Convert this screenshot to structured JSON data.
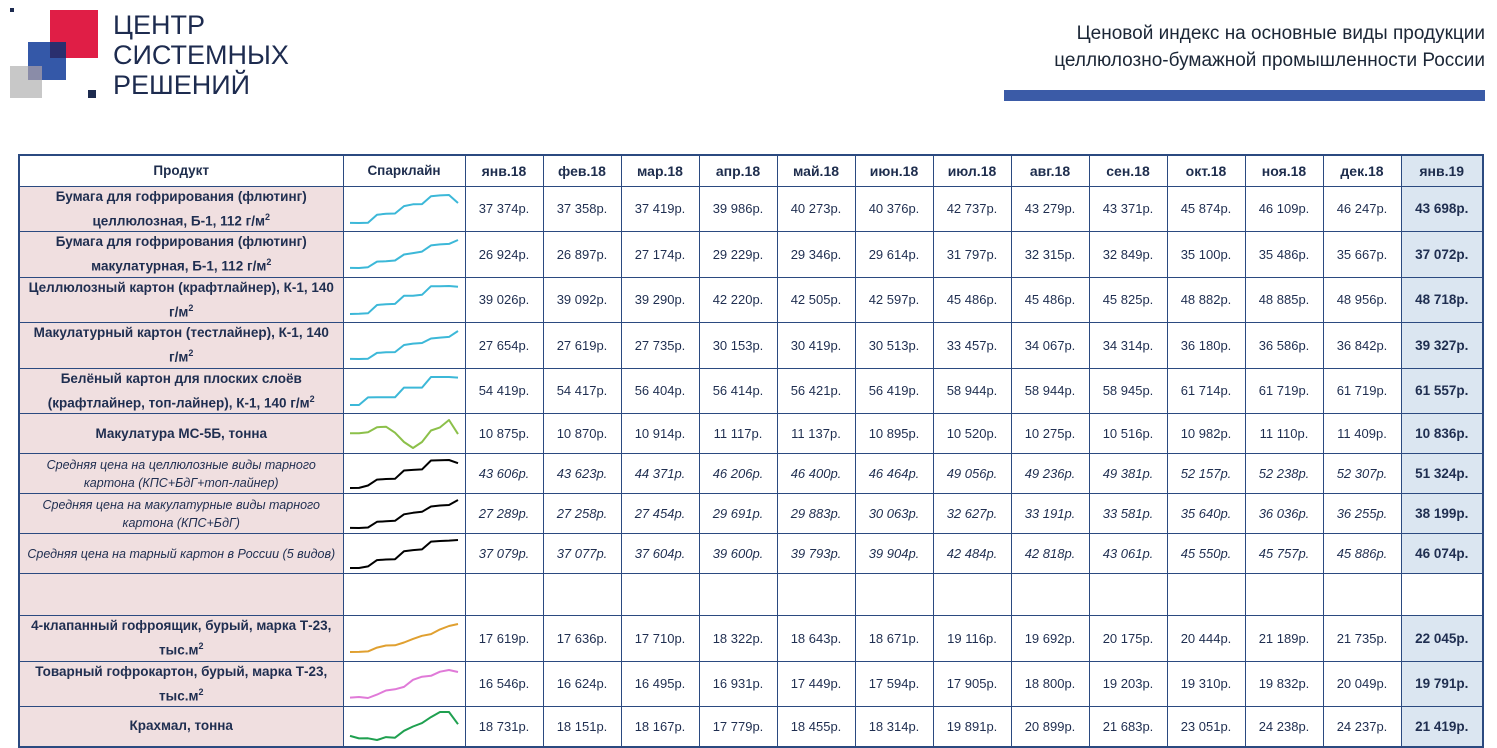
{
  "logo": {
    "lines": [
      "ЦЕНТР",
      "СИСТЕМНЫХ",
      "РЕШЕНИЙ"
    ]
  },
  "title": {
    "line1": "Ценовой индекс на основные виды продукции",
    "line2": "целлюлозно-бумажной промышленности России"
  },
  "chart_data": {
    "type": "table",
    "columns": {
      "product": "Продукт",
      "sparkline": "Спарклайн"
    },
    "months": [
      "янв.18",
      "фев.18",
      "мар.18",
      "апр.18",
      "май.18",
      "июн.18",
      "июл.18",
      "авг.18",
      "сен.18",
      "окт.18",
      "ноя.18",
      "дек.18",
      "янв.19"
    ],
    "currency_suffix": "р.",
    "rows": [
      {
        "line1": "Бумага для гофрирования (флютинг)",
        "line2": "целлюлозная, Б-1, 112 г/м",
        "sup": "2",
        "style": "bold",
        "color": "#3cb8d8",
        "values": [
          "37 374р.",
          "37 358р.",
          "37 419р.",
          "39 986р.",
          "40 273р.",
          "40 376р.",
          "42 737р.",
          "43 279р.",
          "43 371р.",
          "45 874р.",
          "46 109р.",
          "46 247р.",
          "43 698р."
        ],
        "series": [
          37374,
          37358,
          37419,
          39986,
          40273,
          40376,
          42737,
          43279,
          43371,
          45874,
          46109,
          46247,
          43698
        ]
      },
      {
        "line1": "Бумага для гофрирования (флютинг)",
        "line2": "макулатурная, Б-1, 112 г/м",
        "sup": "2",
        "style": "bold",
        "color": "#3cb8d8",
        "values": [
          "26 924р.",
          "26 897р.",
          "27 174р.",
          "29 229р.",
          "29 346р.",
          "29 614р.",
          "31 797р.",
          "32 315р.",
          "32 849р.",
          "35 100р.",
          "35 486р.",
          "35 667р.",
          "37 072р."
        ],
        "series": [
          26924,
          26897,
          27174,
          29229,
          29346,
          29614,
          31797,
          32315,
          32849,
          35100,
          35486,
          35667,
          37072
        ]
      },
      {
        "line1": "Целлюлозный картон (крафтлайнер), К-1, 140",
        "line2": "г/м",
        "sup": "2",
        "style": "bold",
        "color": "#3cb8d8",
        "values": [
          "39 026р.",
          "39 092р.",
          "39 290р.",
          "42 220р.",
          "42 505р.",
          "42 597р.",
          "45 486р.",
          "45 486р.",
          "45 825р.",
          "48 882р.",
          "48 885р.",
          "48 956р.",
          "48 718р."
        ],
        "series": [
          39026,
          39092,
          39290,
          42220,
          42505,
          42597,
          45486,
          45486,
          45825,
          48882,
          48885,
          48956,
          48718
        ]
      },
      {
        "line1": "Макулатурный картон (тестлайнер), К-1, 140",
        "line2": "г/м",
        "sup": "2",
        "style": "bold",
        "color": "#3cb8d8",
        "values": [
          "27 654р.",
          "27 619р.",
          "27 735р.",
          "30 153р.",
          "30 419р.",
          "30 513р.",
          "33 457р.",
          "34 067р.",
          "34 314р.",
          "36 180р.",
          "36 586р.",
          "36 842р.",
          "39 327р."
        ],
        "series": [
          27654,
          27619,
          27735,
          30153,
          30419,
          30513,
          33457,
          34067,
          34314,
          36180,
          36586,
          36842,
          39327
        ]
      },
      {
        "line1": "Белёный картон для плоских слоёв",
        "line2": "(крафтлайнер, топ-лайнер), К-1, 140 г/м",
        "sup": "2",
        "style": "bold",
        "color": "#3cb8d8",
        "values": [
          "54 419р.",
          "54 417р.",
          "56 404р.",
          "56 414р.",
          "56 421р.",
          "56 419р.",
          "58 944р.",
          "58 944р.",
          "58 945р.",
          "61 714р.",
          "61 719р.",
          "61 719р.",
          "61 557р."
        ],
        "series": [
          54419,
          54417,
          56404,
          56414,
          56421,
          56419,
          58944,
          58944,
          58945,
          61714,
          61719,
          61719,
          61557
        ]
      },
      {
        "line1": "Макулатура МС-5Б, тонна",
        "line2": "",
        "sup": "",
        "style": "bold",
        "color": "#8cc04a",
        "values": [
          "10 875р.",
          "10 870р.",
          "10 914р.",
          "11 117р.",
          "11 137р.",
          "10 895р.",
          "10 520р.",
          "10 275р.",
          "10 516р.",
          "10 982р.",
          "11 110р.",
          "11 409р.",
          "10 836р."
        ],
        "series": [
          10875,
          10870,
          10914,
          11117,
          11137,
          10895,
          10520,
          10275,
          10516,
          10982,
          11110,
          11409,
          10836
        ]
      },
      {
        "line1": "Средняя цена на целлюлозные виды тарного",
        "line2": "картона (КПС+БдГ+топ-лайнер)",
        "sup": "",
        "style": "avg",
        "color": "#000000",
        "values": [
          "43 606р.",
          "43 623р.",
          "44 371р.",
          "46 206р.",
          "46 400р.",
          "46 464р.",
          "49 056р.",
          "49 236р.",
          "49 381р.",
          "52 157р.",
          "52 238р.",
          "52 307р.",
          "51 324р."
        ],
        "series": [
          43606,
          43623,
          44371,
          46206,
          46400,
          46464,
          49056,
          49236,
          49381,
          52157,
          52238,
          52307,
          51324
        ]
      },
      {
        "line1": "Средняя цена на макулатурные виды тарного",
        "line2": "картона (КПС+БдГ)",
        "sup": "",
        "style": "avg",
        "color": "#000000",
        "values": [
          "27 289р.",
          "27 258р.",
          "27 454р.",
          "29 691р.",
          "29 883р.",
          "30 063р.",
          "32 627р.",
          "33 191р.",
          "33 581р.",
          "35 640р.",
          "36 036р.",
          "36 255р.",
          "38 199р."
        ],
        "series": [
          27289,
          27258,
          27454,
          29691,
          29883,
          30063,
          32627,
          33191,
          33581,
          35640,
          36036,
          36255,
          38199
        ]
      },
      {
        "line1": "Средняя цена на тарный картон в России (5 видов)",
        "line2": "",
        "sup": "",
        "style": "avg",
        "color": "#000000",
        "values": [
          "37 079р.",
          "37 077р.",
          "37 604р.",
          "39 600р.",
          "39 793р.",
          "39 904р.",
          "42 484р.",
          "42 818р.",
          "43 061р.",
          "45 550р.",
          "45 757р.",
          "45 886р.",
          "46 074р."
        ],
        "series": [
          37079,
          37077,
          37604,
          39600,
          39793,
          39904,
          42484,
          42818,
          43061,
          45550,
          45757,
          45886,
          46074
        ]
      },
      {
        "empty": true
      },
      {
        "line1": "4-клапанный гофроящик, бурый, марка Т-23,",
        "line2": "тыс.м",
        "sup": "2",
        "style": "bold",
        "color": "#e0a030",
        "values": [
          "17 619р.",
          "17 636р.",
          "17 710р.",
          "18 322р.",
          "18 643р.",
          "18 671р.",
          "19 116р.",
          "19 692р.",
          "20 175р.",
          "20 444р.",
          "21 189р.",
          "21 735р.",
          "22 045р."
        ],
        "series": [
          17619,
          17636,
          17710,
          18322,
          18643,
          18671,
          19116,
          19692,
          20175,
          20444,
          21189,
          21735,
          22045
        ]
      },
      {
        "line1": "Товарный гофрокартон, бурый, марка Т-23,",
        "line2": "тыс.м",
        "sup": "2",
        "style": "bold",
        "color": "#e07ad8",
        "values": [
          "16 546р.",
          "16 624р.",
          "16 495р.",
          "16 931р.",
          "17 449р.",
          "17 594р.",
          "17 905р.",
          "18 800р.",
          "19 203р.",
          "19 310р.",
          "19 832р.",
          "20 049р.",
          "19 791р."
        ],
        "series": [
          16546,
          16624,
          16495,
          16931,
          17449,
          17594,
          17905,
          18800,
          19203,
          19310,
          19832,
          20049,
          19791
        ]
      },
      {
        "line1": "Крахмал, тонна",
        "line2": "",
        "sup": "",
        "style": "bold",
        "color": "#1fa050",
        "values": [
          "18 731р.",
          "18 151р.",
          "18 167р.",
          "17 779р.",
          "18 455р.",
          "18 314р.",
          "19 891р.",
          "20 899р.",
          "21 683р.",
          "23 051р.",
          "24 238р.",
          "24 237р.",
          "21 419р."
        ],
        "series": [
          18731,
          18151,
          18167,
          17779,
          18455,
          18314,
          19891,
          20899,
          21683,
          23051,
          24238,
          24237,
          21419
        ]
      }
    ]
  }
}
